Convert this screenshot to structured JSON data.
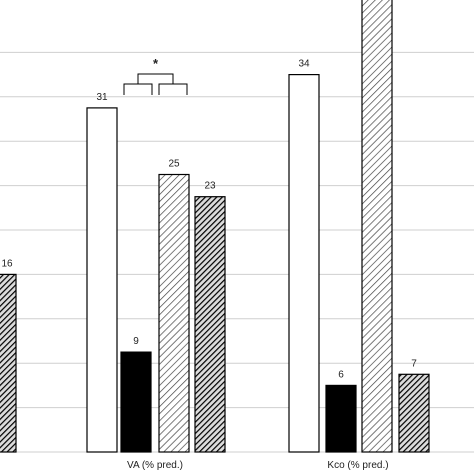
{
  "chart_data": {
    "type": "bar",
    "categories": [
      "",
      "VA (% pred.)",
      "Kco (% pred.)"
    ],
    "series": [
      {
        "pattern": "white",
        "values": [
          null,
          31,
          34
        ]
      },
      {
        "pattern": "black",
        "values": [
          null,
          9,
          6
        ]
      },
      {
        "pattern": "light-hatch",
        "values": [
          null,
          25,
          41
        ]
      },
      {
        "pattern": "dark-hatch",
        "values": [
          16,
          23,
          7
        ]
      }
    ],
    "grid": true,
    "significance": {
      "category": "VA (% pred.)",
      "label": "*"
    }
  }
}
